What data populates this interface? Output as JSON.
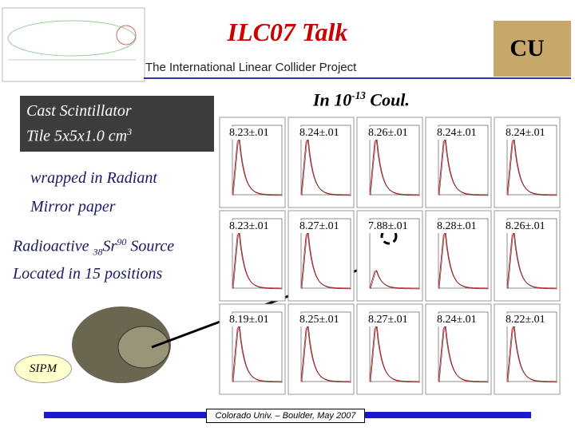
{
  "header": {
    "title": "ILC07 Talk",
    "subtitle": "The International Linear Collider Project"
  },
  "box": {
    "line1": "Cast Scintillator",
    "line2": "Tile 5x5x1.0 cm",
    "line2_sup": "3"
  },
  "charge": {
    "prefix": "In 10",
    "exponent": "-13",
    "suffix": " Coul."
  },
  "wrap": {
    "line1": "wrapped in Radiant",
    "line2": "Mirror paper"
  },
  "source": {
    "pre": "Radioactive ",
    "sub": "38",
    "element": "Sr",
    "sup": "90",
    "post": " Source",
    "line2": "Located in 15 positions"
  },
  "sipm": "SIPM",
  "grid": {
    "rows": [
      [
        "8.23±.01",
        "8.24±.01",
        "8.26±.01",
        "8.24±.01",
        "8.24±.01"
      ],
      [
        "8.23±.01",
        "8.27±.01",
        "7.88±.01",
        "8.28±.01",
        "8.26±.01"
      ],
      [
        "8.19±.01",
        "8.25±.01",
        "8.27±.01",
        "8.24±.01",
        "8.22±.01"
      ]
    ]
  },
  "footer": "Colorado Univ. – Boulder, May 2007"
}
